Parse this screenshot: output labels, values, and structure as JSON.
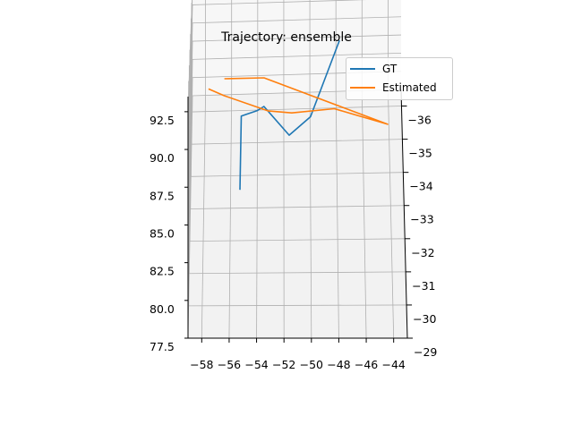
{
  "chart_data": {
    "type": "line",
    "title": "Trajectory: ensemble",
    "projection": "3d",
    "xlim": [
      -59,
      -43
    ],
    "ylim": [
      -29,
      -36.5
    ],
    "zlim": [
      77.5,
      93.5
    ],
    "xticks": [
      "−58",
      "−56",
      "−54",
      "−52",
      "−50",
      "−48",
      "−46",
      "−44"
    ],
    "yticks": [
      "−29",
      "−30",
      "−31",
      "−32",
      "−33",
      "−34",
      "−35",
      "−36"
    ],
    "zticks": [
      "77.5",
      "80.0",
      "82.5",
      "85.0",
      "87.5",
      "90.0",
      "92.5"
    ],
    "grid": true,
    "legend_position": "top-right",
    "series": [
      {
        "name": "GT",
        "color": "#1f77b4",
        "points": [
          [
            -55.3,
            -33.4,
            78.0
          ],
          [
            -55.2,
            -33.7,
            84.3
          ],
          [
            -54.0,
            -33.9,
            84.3
          ],
          [
            -53.5,
            -33.9,
            84.7
          ],
          [
            -51.6,
            -33.6,
            82.6
          ],
          [
            -50.0,
            -33.5,
            84.6
          ],
          [
            -47.8,
            -34.1,
            90.8
          ]
        ]
      },
      {
        "name": "Estimated",
        "color": "#ff7f0e",
        "points": [
          [
            -57.7,
            -34.5,
            85.1
          ],
          [
            -56.5,
            -34.4,
            84.6
          ],
          [
            -53.2,
            -34.0,
            84.0
          ],
          [
            -51.4,
            -33.9,
            84.0
          ],
          [
            -48.2,
            -33.8,
            84.6
          ],
          [
            -44.2,
            -33.4,
            84.0
          ],
          [
            -53.5,
            -34.6,
            85.9
          ],
          [
            -56.5,
            -34.6,
            85.9
          ]
        ]
      }
    ]
  }
}
